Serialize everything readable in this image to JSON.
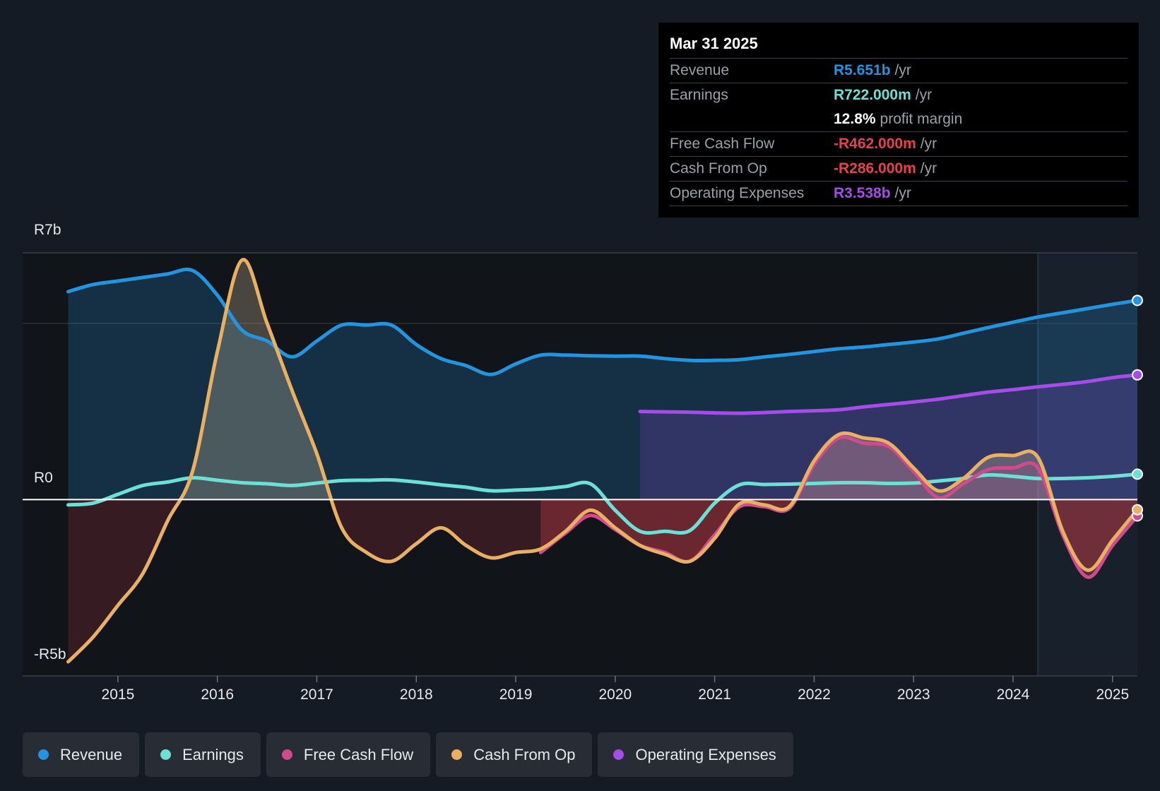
{
  "colors": {
    "background": "#151b24",
    "revenue": "#2394df",
    "earnings": "#6de0d6",
    "free_cash_flow": "#d14a8d",
    "cash_from_op": "#e9b062",
    "operating_expenses": "#a54ce9",
    "negative": "#e5424e",
    "grid": "#3a3f47",
    "axis_text": "#e6e8eb"
  },
  "tooltip": {
    "date": "Mar 31 2025",
    "rows": [
      {
        "label": "Revenue",
        "value": "R5.651b",
        "unit": "/yr"
      },
      {
        "label": "Earnings",
        "value": "R722.000m",
        "unit": "/yr"
      },
      {
        "label": "",
        "value": "12.8%",
        "unit": "profit margin"
      },
      {
        "label": "Free Cash Flow",
        "value": "-R462.000m",
        "unit": "/yr"
      },
      {
        "label": "Cash From Op",
        "value": "-R286.000m",
        "unit": "/yr"
      },
      {
        "label": "Operating Expenses",
        "value": "R3.538b",
        "unit": "/yr"
      }
    ]
  },
  "legend": [
    {
      "label": "Revenue"
    },
    {
      "label": "Earnings"
    },
    {
      "label": "Free Cash Flow"
    },
    {
      "label": "Cash From Op"
    },
    {
      "label": "Operating Expenses"
    }
  ],
  "chart_data": {
    "type": "line",
    "title": "",
    "xlabel": "",
    "ylabel": "",
    "y_unit": "R billions",
    "ylim": [
      -5,
      7
    ],
    "xlim": [
      2014.5,
      2025.25
    ],
    "forecast_start": 2024.25,
    "y_ticks": [
      {
        "value": 7,
        "label": "R7b"
      },
      {
        "value": 0,
        "label": "R0"
      },
      {
        "value": -5,
        "label": "-R5b"
      }
    ],
    "x_ticks": [
      {
        "value": 2015,
        "label": "2015"
      },
      {
        "value": 2016,
        "label": "2016"
      },
      {
        "value": 2017,
        "label": "2017"
      },
      {
        "value": 2018,
        "label": "2018"
      },
      {
        "value": 2019,
        "label": "2019"
      },
      {
        "value": 2020,
        "label": "2020"
      },
      {
        "value": 2021,
        "label": "2021"
      },
      {
        "value": 2022,
        "label": "2022"
      },
      {
        "value": 2023,
        "label": "2023"
      },
      {
        "value": 2024,
        "label": "2024"
      },
      {
        "value": 2025,
        "label": "2025"
      }
    ],
    "series": [
      {
        "name": "Revenue",
        "key": "revenue",
        "x": [
          2014.5,
          2014.75,
          2015.0,
          2015.25,
          2015.5,
          2015.75,
          2016.0,
          2016.25,
          2016.5,
          2016.75,
          2017.0,
          2017.25,
          2017.5,
          2017.75,
          2018.0,
          2018.25,
          2018.5,
          2018.75,
          2019.0,
          2019.25,
          2019.5,
          2019.75,
          2020.0,
          2020.25,
          2020.5,
          2020.75,
          2021.0,
          2021.25,
          2021.5,
          2021.75,
          2022.0,
          2022.25,
          2022.5,
          2022.75,
          2023.0,
          2023.25,
          2023.5,
          2023.75,
          2024.0,
          2024.25,
          2024.5,
          2024.75,
          2025.0,
          2025.25
        ],
        "y": [
          5.9,
          6.1,
          6.2,
          6.3,
          6.4,
          6.5,
          5.8,
          4.8,
          4.5,
          4.05,
          4.5,
          4.95,
          4.95,
          4.95,
          4.4,
          4.0,
          3.8,
          3.55,
          3.85,
          4.1,
          4.1,
          4.08,
          4.07,
          4.07,
          4.0,
          3.95,
          3.95,
          3.97,
          4.05,
          4.12,
          4.2,
          4.28,
          4.33,
          4.4,
          4.47,
          4.56,
          4.72,
          4.88,
          5.03,
          5.18,
          5.3,
          5.42,
          5.54,
          5.651
        ]
      },
      {
        "name": "Earnings",
        "key": "earnings",
        "x": [
          2014.5,
          2014.75,
          2015.0,
          2015.25,
          2015.5,
          2015.75,
          2016.0,
          2016.25,
          2016.5,
          2016.75,
          2017.0,
          2017.25,
          2017.5,
          2017.75,
          2018.0,
          2018.25,
          2018.5,
          2018.75,
          2019.0,
          2019.25,
          2019.5,
          2019.75,
          2020.0,
          2020.25,
          2020.5,
          2020.75,
          2021.0,
          2021.25,
          2021.5,
          2021.75,
          2022.0,
          2022.25,
          2022.5,
          2022.75,
          2023.0,
          2023.25,
          2023.5,
          2023.75,
          2024.0,
          2024.25,
          2024.5,
          2024.75,
          2025.0,
          2025.25
        ],
        "y": [
          -0.15,
          -0.1,
          0.15,
          0.4,
          0.5,
          0.62,
          0.55,
          0.48,
          0.45,
          0.4,
          0.47,
          0.54,
          0.55,
          0.56,
          0.5,
          0.42,
          0.35,
          0.25,
          0.27,
          0.3,
          0.37,
          0.45,
          -0.3,
          -0.9,
          -0.9,
          -0.88,
          -0.1,
          0.42,
          0.43,
          0.44,
          0.46,
          0.48,
          0.48,
          0.46,
          0.47,
          0.53,
          0.6,
          0.7,
          0.66,
          0.6,
          0.6,
          0.62,
          0.66,
          0.722
        ]
      },
      {
        "name": "Free Cash Flow",
        "key": "free_cash_flow",
        "x": [
          2019.25,
          2019.5,
          2019.75,
          2020.0,
          2020.25,
          2020.5,
          2020.75,
          2021.0,
          2021.25,
          2021.5,
          2021.75,
          2022.0,
          2022.25,
          2022.5,
          2022.75,
          2023.0,
          2023.25,
          2023.5,
          2023.75,
          2024.0,
          2024.25,
          2024.5,
          2024.75,
          2025.0,
          2025.25
        ],
        "y": [
          -1.5,
          -0.95,
          -0.45,
          -0.85,
          -1.3,
          -1.5,
          -1.75,
          -1.0,
          -0.2,
          -0.2,
          -0.25,
          1.0,
          1.75,
          1.6,
          1.5,
          0.8,
          0.05,
          0.45,
          0.85,
          0.9,
          0.9,
          -1.0,
          -2.2,
          -1.3,
          -0.462
        ]
      },
      {
        "name": "Cash From Op",
        "key": "cash_from_op",
        "x": [
          2014.5,
          2014.75,
          2015.0,
          2015.25,
          2015.5,
          2015.75,
          2016.0,
          2016.25,
          2016.5,
          2016.75,
          2017.0,
          2017.25,
          2017.5,
          2017.75,
          2018.0,
          2018.25,
          2018.5,
          2018.75,
          2019.0,
          2019.25,
          2019.5,
          2019.75,
          2020.0,
          2020.25,
          2020.5,
          2020.75,
          2021.0,
          2021.25,
          2021.5,
          2021.75,
          2022.0,
          2022.25,
          2022.5,
          2022.75,
          2023.0,
          2023.25,
          2023.5,
          2023.75,
          2024.0,
          2024.25,
          2024.5,
          2024.75,
          2025.0,
          2025.25
        ],
        "y": [
          -4.6,
          -3.9,
          -3.0,
          -2.1,
          -0.6,
          0.8,
          4.2,
          6.8,
          5.0,
          3.1,
          1.3,
          -0.8,
          -1.5,
          -1.75,
          -1.25,
          -0.8,
          -1.3,
          -1.65,
          -1.5,
          -1.4,
          -0.9,
          -0.3,
          -0.8,
          -1.3,
          -1.55,
          -1.75,
          -1.1,
          -0.12,
          -0.15,
          -0.2,
          1.1,
          1.85,
          1.75,
          1.6,
          0.9,
          0.25,
          0.6,
          1.2,
          1.25,
          1.2,
          -0.9,
          -2.0,
          -1.15,
          -0.286
        ]
      },
      {
        "name": "Operating Expenses",
        "key": "operating_expenses",
        "x": [
          2020.25,
          2020.5,
          2020.75,
          2021.0,
          2021.25,
          2021.5,
          2021.75,
          2022.0,
          2022.25,
          2022.5,
          2022.75,
          2023.0,
          2023.25,
          2023.5,
          2023.75,
          2024.0,
          2024.25,
          2024.5,
          2024.75,
          2025.0,
          2025.25
        ],
        "y": [
          2.5,
          2.49,
          2.48,
          2.46,
          2.45,
          2.47,
          2.5,
          2.52,
          2.55,
          2.63,
          2.7,
          2.77,
          2.85,
          2.95,
          3.05,
          3.12,
          3.2,
          3.27,
          3.35,
          3.46,
          3.538
        ]
      }
    ]
  }
}
